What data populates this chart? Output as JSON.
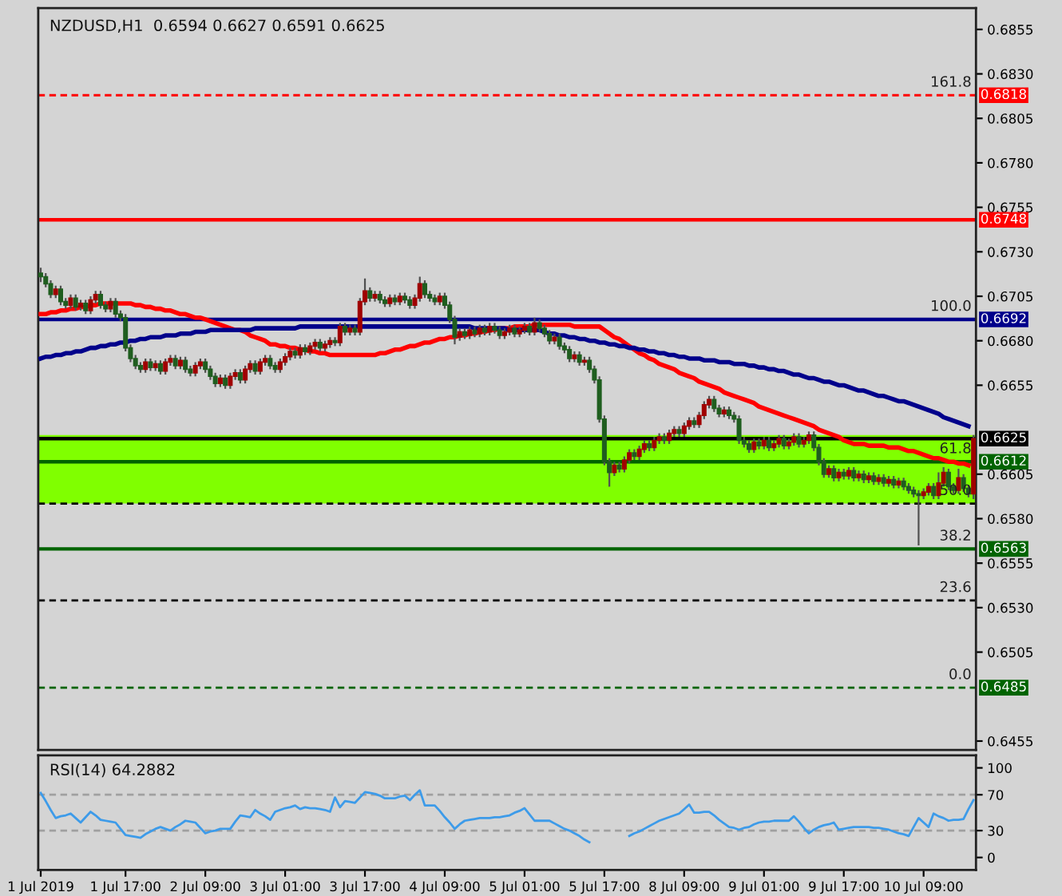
{
  "chart_data": [
    {
      "type": "candlestick",
      "title": "NZDUSD,H1  0.6594 0.6627 0.6591 0.6625",
      "tick_labels": "y",
      "categories": [
        null,
        null,
        null,
        null,
        null,
        null,
        null,
        null,
        null,
        null,
        null,
        null,
        null,
        null,
        null,
        null,
        null,
        null,
        null,
        null,
        null,
        null,
        null,
        null,
        null,
        null,
        null,
        null,
        null,
        null,
        null,
        null,
        null,
        null,
        null,
        null,
        null,
        null,
        null,
        null,
        null,
        null,
        null,
        null,
        null,
        null,
        null,
        null,
        null,
        null,
        null,
        null,
        null,
        null,
        null,
        null,
        null,
        null,
        null,
        null,
        null,
        null,
        null,
        null,
        null,
        null,
        null,
        null,
        null,
        null,
        null,
        null,
        null,
        null,
        null,
        null,
        null,
        null,
        null,
        null,
        null,
        null,
        null,
        null,
        null,
        null,
        null,
        null,
        null,
        null,
        null,
        null,
        null,
        null,
        null,
        null,
        null,
        null,
        null,
        null,
        null,
        null,
        null,
        null,
        null,
        null,
        null,
        null,
        null,
        null,
        null,
        null,
        null,
        null,
        null,
        null,
        null,
        null,
        null,
        null,
        null,
        null,
        null,
        null,
        null,
        null,
        null,
        null,
        null,
        null,
        null,
        null,
        null,
        null,
        null,
        null,
        null,
        null,
        null,
        null,
        null,
        null,
        null,
        null,
        null,
        null,
        null,
        null,
        null,
        null,
        null,
        null,
        null,
        null,
        null,
        null,
        null,
        null,
        null,
        null,
        null,
        null,
        null,
        null,
        null,
        null,
        null,
        null,
        null,
        null,
        null,
        null,
        null,
        null,
        null,
        null,
        null,
        null,
        null,
        null,
        null,
        null,
        null,
        null,
        null,
        null,
        null,
        null
      ],
      "ohlc": [
        [
          0.6718,
          0.6721,
          0.6713,
          0.6716
        ],
        [
          0.6716,
          0.6718,
          0.671,
          0.6712
        ],
        [
          0.6712,
          0.6714,
          0.6704,
          0.6706
        ],
        [
          0.6706,
          0.6711,
          0.6704,
          0.6709
        ],
        [
          0.6709,
          0.6711,
          0.67,
          0.6702
        ],
        [
          0.6702,
          0.6704,
          0.6698,
          0.67
        ],
        [
          0.67,
          0.6706,
          0.6698,
          0.6704
        ],
        [
          0.6704,
          0.6706,
          0.6697,
          0.6699
        ],
        [
          0.6699,
          0.6703,
          0.6697,
          0.6701
        ],
        [
          0.6701,
          0.6703,
          0.6695,
          0.6697
        ],
        [
          0.6697,
          0.6705,
          0.6695,
          0.6703
        ],
        [
          0.6703,
          0.6708,
          0.6701,
          0.6706
        ],
        [
          0.6706,
          0.6708,
          0.6698,
          0.67
        ],
        [
          0.67,
          0.6702,
          0.6696,
          0.6698
        ],
        [
          0.6698,
          0.6704,
          0.6696,
          0.6702
        ],
        [
          0.6702,
          0.6704,
          0.6693,
          0.6695
        ],
        [
          0.6695,
          0.6697,
          0.6691,
          0.6693
        ],
        [
          0.6693,
          0.6695,
          0.6674,
          0.6676
        ],
        [
          0.6676,
          0.6678,
          0.6668,
          0.667
        ],
        [
          0.667,
          0.6672,
          0.6664,
          0.6666
        ],
        [
          0.6666,
          0.6668,
          0.6662,
          0.6664
        ],
        [
          0.6664,
          0.667,
          0.6662,
          0.6668
        ],
        [
          0.6668,
          0.667,
          0.6663,
          0.6665
        ],
        [
          0.6665,
          0.6669,
          0.6663,
          0.6667
        ],
        [
          0.6667,
          0.6669,
          0.6661,
          0.6663
        ],
        [
          0.6663,
          0.667,
          0.6661,
          0.6668
        ],
        [
          0.6668,
          0.6672,
          0.6666,
          0.667
        ],
        [
          0.667,
          0.6672,
          0.6664,
          0.6666
        ],
        [
          0.6666,
          0.6671,
          0.6664,
          0.6669
        ],
        [
          0.6669,
          0.6671,
          0.6662,
          0.6664
        ],
        [
          0.6664,
          0.6666,
          0.666,
          0.6662
        ],
        [
          0.6662,
          0.6668,
          0.666,
          0.6666
        ],
        [
          0.6666,
          0.667,
          0.6664,
          0.6668
        ],
        [
          0.6668,
          0.667,
          0.6662,
          0.6664
        ],
        [
          0.6664,
          0.6666,
          0.6658,
          0.666
        ],
        [
          0.666,
          0.6662,
          0.6654,
          0.6656
        ],
        [
          0.6656,
          0.6661,
          0.6654,
          0.6659
        ],
        [
          0.6659,
          0.6661,
          0.6653,
          0.6655
        ],
        [
          0.6655,
          0.6662,
          0.6653,
          0.666
        ],
        [
          0.666,
          0.6664,
          0.6658,
          0.6662
        ],
        [
          0.6662,
          0.6664,
          0.6656,
          0.6658
        ],
        [
          0.6658,
          0.6666,
          0.6656,
          0.6664
        ],
        [
          0.6664,
          0.6669,
          0.6662,
          0.6667
        ],
        [
          0.6667,
          0.6669,
          0.6661,
          0.6663
        ],
        [
          0.6663,
          0.667,
          0.6661,
          0.6668
        ],
        [
          0.6668,
          0.6672,
          0.6666,
          0.667
        ],
        [
          0.667,
          0.6672,
          0.6664,
          0.6666
        ],
        [
          0.6666,
          0.6668,
          0.6662,
          0.6664
        ],
        [
          0.6664,
          0.667,
          0.6662,
          0.6668
        ],
        [
          0.6668,
          0.6673,
          0.6666,
          0.6671
        ],
        [
          0.6671,
          0.6676,
          0.6669,
          0.6674
        ],
        [
          0.6674,
          0.6676,
          0.667,
          0.6672
        ],
        [
          0.6672,
          0.6678,
          0.667,
          0.6676
        ],
        [
          0.6676,
          0.6678,
          0.6672,
          0.6674
        ],
        [
          0.6674,
          0.6679,
          0.6672,
          0.6677
        ],
        [
          0.6677,
          0.6681,
          0.6675,
          0.6679
        ],
        [
          0.6679,
          0.6681,
          0.6674,
          0.6676
        ],
        [
          0.6676,
          0.668,
          0.6674,
          0.6678
        ],
        [
          0.6678,
          0.6682,
          0.6676,
          0.668
        ],
        [
          0.668,
          0.6682,
          0.6677,
          0.6679
        ],
        [
          0.6679,
          0.669,
          0.6677,
          0.6688
        ],
        [
          0.6688,
          0.669,
          0.6683,
          0.6685
        ],
        [
          0.6685,
          0.6689,
          0.6683,
          0.6687
        ],
        [
          0.6687,
          0.6689,
          0.6683,
          0.6685
        ],
        [
          0.6685,
          0.6704,
          0.6683,
          0.6702
        ],
        [
          0.6702,
          0.6715,
          0.67,
          0.6708
        ],
        [
          0.6708,
          0.671,
          0.6702,
          0.6704
        ],
        [
          0.6704,
          0.6708,
          0.6702,
          0.6706
        ],
        [
          0.6706,
          0.6708,
          0.6701,
          0.6703
        ],
        [
          0.6703,
          0.6705,
          0.6699,
          0.6701
        ],
        [
          0.6701,
          0.6706,
          0.6699,
          0.6704
        ],
        [
          0.6704,
          0.6706,
          0.67,
          0.6702
        ],
        [
          0.6702,
          0.6707,
          0.67,
          0.6705
        ],
        [
          0.6705,
          0.6707,
          0.6701,
          0.6703
        ],
        [
          0.6703,
          0.6705,
          0.6698,
          0.67
        ],
        [
          0.67,
          0.6706,
          0.6698,
          0.6704
        ],
        [
          0.6704,
          0.6716,
          0.6702,
          0.6712
        ],
        [
          0.6712,
          0.6714,
          0.6704,
          0.6706
        ],
        [
          0.6706,
          0.6708,
          0.6702,
          0.6704
        ],
        [
          0.6704,
          0.6706,
          0.67,
          0.6702
        ],
        [
          0.6702,
          0.6707,
          0.67,
          0.6705
        ],
        [
          0.6705,
          0.6707,
          0.6698,
          0.67
        ],
        [
          0.67,
          0.6702,
          0.669,
          0.6692
        ],
        [
          0.6692,
          0.6694,
          0.6678,
          0.6682
        ],
        [
          0.6682,
          0.6687,
          0.668,
          0.6685
        ],
        [
          0.6685,
          0.6687,
          0.6681,
          0.6683
        ],
        [
          0.6683,
          0.6688,
          0.6681,
          0.6686
        ],
        [
          0.6686,
          0.6688,
          0.6682,
          0.6684
        ],
        [
          0.6684,
          0.6689,
          0.6682,
          0.6687
        ],
        [
          0.6687,
          0.6689,
          0.6683,
          0.6685
        ],
        [
          0.6685,
          0.669,
          0.6683,
          0.6688
        ],
        [
          0.6688,
          0.669,
          0.6684,
          0.6686
        ],
        [
          0.6686,
          0.6688,
          0.6681,
          0.6683
        ],
        [
          0.6683,
          0.6687,
          0.6681,
          0.6685
        ],
        [
          0.6685,
          0.6689,
          0.6683,
          0.6687
        ],
        [
          0.6687,
          0.6689,
          0.6682,
          0.6684
        ],
        [
          0.6684,
          0.6688,
          0.6682,
          0.6686
        ],
        [
          0.6686,
          0.669,
          0.6684,
          0.6688
        ],
        [
          0.6688,
          0.669,
          0.6683,
          0.6685
        ],
        [
          0.6685,
          0.6693,
          0.6683,
          0.669
        ],
        [
          0.669,
          0.6692,
          0.6685,
          0.6687
        ],
        [
          0.6687,
          0.6689,
          0.6682,
          0.6684
        ],
        [
          0.6684,
          0.6686,
          0.6678,
          0.668
        ],
        [
          0.668,
          0.6684,
          0.6678,
          0.6682
        ],
        [
          0.6682,
          0.6684,
          0.6675,
          0.6677
        ],
        [
          0.6677,
          0.6679,
          0.6673,
          0.6675
        ],
        [
          0.6675,
          0.6677,
          0.6668,
          0.667
        ],
        [
          0.667,
          0.6674,
          0.6668,
          0.6672
        ],
        [
          0.6672,
          0.6674,
          0.6666,
          0.6668
        ],
        [
          0.6668,
          0.6671,
          0.6666,
          0.6669
        ],
        [
          0.6669,
          0.6671,
          0.6662,
          0.6664
        ],
        [
          0.6664,
          0.6666,
          0.6656,
          0.6658
        ],
        [
          0.6658,
          0.666,
          0.6634,
          0.6636
        ],
        [
          0.6636,
          0.6638,
          0.661,
          0.6612
        ],
        [
          0.6612,
          0.6614,
          0.6598,
          0.6606
        ],
        [
          0.6606,
          0.6612,
          0.6604,
          0.661
        ],
        [
          0.661,
          0.6612,
          0.6606,
          0.6608
        ],
        [
          0.6608,
          0.6615,
          0.6606,
          0.6613
        ],
        [
          0.6613,
          0.6619,
          0.6611,
          0.6617
        ],
        [
          0.6617,
          0.6619,
          0.6613,
          0.6615
        ],
        [
          0.6615,
          0.6621,
          0.6613,
          0.6619
        ],
        [
          0.6619,
          0.6624,
          0.6617,
          0.6622
        ],
        [
          0.6622,
          0.6624,
          0.6618,
          0.662
        ],
        [
          0.662,
          0.6626,
          0.6618,
          0.6624
        ],
        [
          0.6624,
          0.6628,
          0.6622,
          0.6626
        ],
        [
          0.6626,
          0.6628,
          0.6622,
          0.6624
        ],
        [
          0.6624,
          0.663,
          0.6622,
          0.6628
        ],
        [
          0.6628,
          0.6632,
          0.6626,
          0.663
        ],
        [
          0.663,
          0.6632,
          0.6626,
          0.6628
        ],
        [
          0.6628,
          0.6634,
          0.6626,
          0.6632
        ],
        [
          0.6632,
          0.6637,
          0.663,
          0.6635
        ],
        [
          0.6635,
          0.6637,
          0.6631,
          0.6633
        ],
        [
          0.6633,
          0.664,
          0.6631,
          0.6638
        ],
        [
          0.6638,
          0.6646,
          0.6636,
          0.6644
        ],
        [
          0.6644,
          0.6649,
          0.6642,
          0.6647
        ],
        [
          0.6647,
          0.6649,
          0.664,
          0.6642
        ],
        [
          0.6642,
          0.6644,
          0.6637,
          0.6639
        ],
        [
          0.6639,
          0.6643,
          0.6637,
          0.6641
        ],
        [
          0.6641,
          0.6643,
          0.6636,
          0.6638
        ],
        [
          0.6638,
          0.664,
          0.6634,
          0.6636
        ],
        [
          0.6636,
          0.6638,
          0.6622,
          0.6624
        ],
        [
          0.6624,
          0.6626,
          0.662,
          0.6622
        ],
        [
          0.6622,
          0.6624,
          0.6617,
          0.6619
        ],
        [
          0.6619,
          0.6625,
          0.6617,
          0.6623
        ],
        [
          0.6623,
          0.6625,
          0.6619,
          0.6621
        ],
        [
          0.6621,
          0.6626,
          0.6619,
          0.6624
        ],
        [
          0.6624,
          0.6626,
          0.6618,
          0.662
        ],
        [
          0.662,
          0.6624,
          0.6618,
          0.6622
        ],
        [
          0.6622,
          0.6627,
          0.662,
          0.6625
        ],
        [
          0.6625,
          0.6627,
          0.6619,
          0.6621
        ],
        [
          0.6621,
          0.6625,
          0.6619,
          0.6623
        ],
        [
          0.6623,
          0.6628,
          0.6621,
          0.6626
        ],
        [
          0.6626,
          0.6628,
          0.662,
          0.6622
        ],
        [
          0.6622,
          0.6626,
          0.662,
          0.6624
        ],
        [
          0.6624,
          0.6629,
          0.6622,
          0.6627
        ],
        [
          0.6627,
          0.6629,
          0.6618,
          0.662
        ],
        [
          0.662,
          0.6622,
          0.661,
          0.6612
        ],
        [
          0.6612,
          0.6614,
          0.6603,
          0.6605
        ],
        [
          0.6605,
          0.661,
          0.6603,
          0.6608
        ],
        [
          0.6608,
          0.661,
          0.6601,
          0.6603
        ],
        [
          0.6603,
          0.6608,
          0.6601,
          0.6606
        ],
        [
          0.6606,
          0.6608,
          0.6602,
          0.6604
        ],
        [
          0.6604,
          0.6609,
          0.6602,
          0.6607
        ],
        [
          0.6607,
          0.6609,
          0.6601,
          0.6603
        ],
        [
          0.6603,
          0.6607,
          0.6601,
          0.6605
        ],
        [
          0.6605,
          0.6607,
          0.66,
          0.6602
        ],
        [
          0.6602,
          0.6606,
          0.66,
          0.6604
        ],
        [
          0.6604,
          0.6606,
          0.6599,
          0.6601
        ],
        [
          0.6601,
          0.6605,
          0.6599,
          0.6603
        ],
        [
          0.6603,
          0.6605,
          0.6598,
          0.66
        ],
        [
          0.66,
          0.6604,
          0.6598,
          0.6602
        ],
        [
          0.6602,
          0.6604,
          0.6597,
          0.6599
        ],
        [
          0.6599,
          0.6603,
          0.6597,
          0.6601
        ],
        [
          0.6601,
          0.6603,
          0.6596,
          0.6598
        ],
        [
          0.6598,
          0.66,
          0.6594,
          0.6596
        ],
        [
          0.6596,
          0.6598,
          0.6592,
          0.6594
        ],
        [
          0.6594,
          0.6596,
          0.6565,
          0.6593
        ],
        [
          0.6593,
          0.6597,
          0.6591,
          0.6595
        ],
        [
          0.6595,
          0.66,
          0.6593,
          0.6598
        ],
        [
          0.6598,
          0.66,
          0.6591,
          0.6593
        ],
        [
          0.6593,
          0.6606,
          0.6591,
          0.66
        ],
        [
          0.66,
          0.6609,
          0.6598,
          0.6606
        ],
        [
          0.6606,
          0.6608,
          0.6596,
          0.6598
        ],
        [
          0.6598,
          0.66,
          0.6594,
          0.6596
        ],
        [
          0.6596,
          0.6608,
          0.6594,
          0.6603
        ],
        [
          0.6603,
          0.6605,
          0.6595,
          0.6597
        ],
        [
          0.6597,
          0.6599,
          0.6592,
          0.6594
        ],
        [
          0.6594,
          0.6627,
          0.6591,
          0.6625
        ]
      ],
      "series": [
        {
          "type": "line",
          "color": "#ff0000",
          "values": [
            0.6695,
            0.6695,
            0.6696,
            0.6696,
            0.6697,
            0.6697,
            0.6698,
            0.6698,
            0.6699,
            0.6699,
            0.67,
            0.67,
            0.6701,
            0.6701,
            0.6701,
            0.6701,
            0.6701,
            0.6701,
            0.6701,
            0.67,
            0.67,
            0.6699,
            0.6699,
            0.6698,
            0.6698,
            0.6697,
            0.6697,
            0.6696,
            0.6695,
            0.6695,
            0.6694,
            0.6693,
            0.6693,
            0.6692,
            0.6691,
            0.669,
            0.6689,
            0.6688,
            0.6687,
            0.6686,
            0.6686,
            0.6685,
            0.6683,
            0.6682,
            0.6681,
            0.668,
            0.6678,
            0.6678,
            0.6677,
            0.6677,
            0.6676,
            0.6676,
            0.6675,
            0.6675,
            0.6674,
            0.6674,
            0.6673,
            0.6673,
            0.6672,
            0.6672,
            0.6672,
            0.6672,
            0.6672,
            0.6672,
            0.6672,
            0.6672,
            0.6672,
            0.6672,
            0.6673,
            0.6673,
            0.6674,
            0.6675,
            0.6675,
            0.6676,
            0.6677,
            0.6677,
            0.6678,
            0.6679,
            0.6679,
            0.668,
            0.6681,
            0.6681,
            0.6682,
            0.6682,
            0.6683,
            0.6683,
            0.6684,
            0.6684,
            0.6685,
            0.6685,
            0.6686,
            0.6686,
            0.6687,
            0.6687,
            0.6687,
            0.6688,
            0.6688,
            0.6688,
            0.6688,
            0.6689,
            0.6689,
            0.6689,
            0.6689,
            0.6689,
            0.6689,
            0.6689,
            0.6689,
            0.6688,
            0.6688,
            0.6688,
            0.6688,
            0.6688,
            0.6688,
            0.6686,
            0.6684,
            0.6682,
            0.6681,
            0.6679,
            0.6677,
            0.6675,
            0.6673,
            0.6672,
            0.667,
            0.6669,
            0.6667,
            0.6666,
            0.6665,
            0.6664,
            0.6662,
            0.6661,
            0.666,
            0.6659,
            0.6657,
            0.6656,
            0.6655,
            0.6654,
            0.6653,
            0.6651,
            0.665,
            0.6649,
            0.6648,
            0.6647,
            0.6646,
            0.6645,
            0.6643,
            0.6642,
            0.6641,
            0.664,
            0.6639,
            0.6638,
            0.6637,
            0.6636,
            0.6635,
            0.6634,
            0.6633,
            0.6632,
            0.663,
            0.6629,
            0.6628,
            0.6627,
            0.6626,
            0.6624,
            0.6623,
            0.6622,
            0.6622,
            0.6622,
            0.6621,
            0.6621,
            0.6621,
            0.6621,
            0.662,
            0.662,
            0.662,
            0.6619,
            0.6618,
            0.6618,
            0.6617,
            0.6616,
            0.6615,
            0.6614,
            0.6614,
            0.6613,
            0.6612,
            0.6612,
            0.6611,
            0.6611,
            0.661,
            null
          ]
        },
        {
          "type": "line",
          "color": "#00008b",
          "values": [
            0.667,
            0.6671,
            0.6671,
            0.6672,
            0.6672,
            0.6673,
            0.6673,
            0.6674,
            0.6674,
            0.6675,
            0.6676,
            0.6676,
            0.6677,
            0.6677,
            0.6678,
            0.6678,
            0.6679,
            0.6679,
            0.668,
            0.668,
            0.6681,
            0.6681,
            0.6682,
            0.6682,
            0.6682,
            0.6683,
            0.6683,
            0.6683,
            0.6684,
            0.6684,
            0.6684,
            0.6685,
            0.6685,
            0.6685,
            0.6686,
            0.6686,
            0.6686,
            0.6686,
            0.6686,
            0.6686,
            0.6686,
            0.6686,
            0.6686,
            0.6687,
            0.6687,
            0.6687,
            0.6687,
            0.6687,
            0.6687,
            0.6687,
            0.6687,
            0.6687,
            0.6688,
            0.6688,
            0.6688,
            0.6688,
            0.6688,
            0.6688,
            0.6688,
            0.6688,
            0.6688,
            0.6688,
            0.6688,
            0.6688,
            0.6688,
            0.6688,
            0.6688,
            0.6688,
            0.6688,
            0.6688,
            0.6688,
            0.6688,
            0.6688,
            0.6688,
            0.6688,
            0.6688,
            0.6688,
            0.6688,
            0.6688,
            0.6688,
            0.6688,
            0.6688,
            0.6688,
            0.6688,
            0.6688,
            0.6688,
            0.6688,
            0.6687,
            0.6687,
            0.6687,
            0.6687,
            0.6687,
            0.6687,
            0.6687,
            0.6686,
            0.6686,
            0.6686,
            0.6686,
            0.6686,
            0.6686,
            0.6686,
            0.6685,
            0.6684,
            0.6684,
            0.6683,
            0.6683,
            0.6682,
            0.6682,
            0.6681,
            0.6681,
            0.668,
            0.668,
            0.6679,
            0.6679,
            0.6678,
            0.6678,
            0.6677,
            0.6677,
            0.6676,
            0.6676,
            0.6675,
            0.6675,
            0.6674,
            0.6674,
            0.6673,
            0.6673,
            0.6672,
            0.6672,
            0.6671,
            0.6671,
            0.667,
            0.667,
            0.667,
            0.6669,
            0.6669,
            0.6669,
            0.6668,
            0.6668,
            0.6668,
            0.6667,
            0.6667,
            0.6667,
            0.6666,
            0.6666,
            0.6665,
            0.6665,
            0.6664,
            0.6664,
            0.6663,
            0.6663,
            0.6662,
            0.6661,
            0.6661,
            0.666,
            0.6659,
            0.6659,
            0.6658,
            0.6657,
            0.6657,
            0.6656,
            0.6655,
            0.6655,
            0.6654,
            0.6653,
            0.6652,
            0.6652,
            0.6651,
            0.665,
            0.6649,
            0.6649,
            0.6648,
            0.6647,
            0.6646,
            0.6646,
            0.6645,
            0.6644,
            0.6643,
            0.6642,
            0.6641,
            0.664,
            0.6639,
            0.6637,
            0.6636,
            0.6635,
            0.6634,
            0.6633,
            0.6632,
            null
          ]
        }
      ],
      "ylim": [
        0.645,
        0.6867
      ],
      "yticks": [
        {
          "value": 0.6855,
          "label": "0.6855"
        },
        {
          "value": 0.683,
          "label": "0.6830"
        },
        {
          "value": 0.6805,
          "label": "0.6805"
        },
        {
          "value": 0.678,
          "label": "0.6780"
        },
        {
          "value": 0.6755,
          "label": "0.6755"
        },
        {
          "value": 0.673,
          "label": "0.6730"
        },
        {
          "value": 0.6705,
          "label": "0.6705"
        },
        {
          "value": 0.668,
          "label": "0.6680"
        },
        {
          "value": 0.6655,
          "label": "0.6655"
        },
        {
          "value": 0.6605,
          "label": "0.6605"
        },
        {
          "value": 0.658,
          "label": "0.6580"
        },
        {
          "value": 0.6555,
          "label": "0.6555"
        },
        {
          "value": 0.653,
          "label": "0.6530"
        },
        {
          "value": 0.6505,
          "label": "0.6505"
        },
        {
          "value": 0.6455,
          "label": "0.6455"
        }
      ],
      "bands": [
        {
          "axis": "y",
          "from": 0.65885,
          "to": 0.6627,
          "color": "#80ff00"
        }
      ],
      "ref_lines": [
        {
          "axis": "y",
          "value": 0.65885,
          "line_style": "dashed"
        },
        {
          "axis": "y",
          "value": 0.6534,
          "line_style": "dashed"
        },
        {
          "axis": "y",
          "value": 0.6818,
          "label": "0.6818",
          "color": "#ff0000",
          "line_style": "dashed"
        },
        {
          "axis": "y",
          "value": 0.6748,
          "label": "0.6748",
          "color": "#ff0000",
          "line_style": "solid"
        },
        {
          "axis": "y",
          "value": 0.6692,
          "label": "0.6692",
          "color": "#00008b",
          "line_style": "solid"
        },
        {
          "axis": "y",
          "value": 0.6625,
          "label": "0.6625",
          "color": "#000000",
          "line_style": "solid"
        },
        {
          "axis": "y",
          "value": 0.6612,
          "label": "0.6612",
          "color": "#006400",
          "line_style": "solid"
        },
        {
          "axis": "y",
          "value": 0.6563,
          "label": "0.6563",
          "color": "#006400",
          "line_style": "solid"
        },
        {
          "axis": "y",
          "value": 0.6485,
          "label": "0.6485",
          "color": "#006400",
          "line_style": "dashed"
        }
      ],
      "annotations": [
        {
          "text": "161.8",
          "y": 0.6818
        },
        {
          "text": "100.0",
          "y": 0.6692
        },
        {
          "text": "61.8",
          "y": 0.6612
        },
        {
          "text": "50.0",
          "y": 0.65885
        },
        {
          "text": "38.2",
          "y": 0.6563
        },
        {
          "text": "23.6",
          "y": 0.6534
        },
        {
          "text": "0.0",
          "y": 0.6485
        }
      ]
    },
    {
      "type": "line",
      "title": "RSI(14) 64.2882",
      "categories": [
        "1 Jul 2019",
        null,
        null,
        null,
        null,
        null,
        null,
        null,
        null,
        null,
        null,
        null,
        null,
        null,
        null,
        null,
        null,
        "1 Jul 17:00",
        null,
        null,
        null,
        null,
        null,
        null,
        null,
        null,
        null,
        null,
        null,
        null,
        null,
        null,
        null,
        "2 Jul 09:00",
        null,
        null,
        null,
        null,
        null,
        null,
        null,
        null,
        null,
        null,
        null,
        null,
        null,
        null,
        null,
        "3 Jul 01:00",
        null,
        null,
        null,
        null,
        null,
        null,
        null,
        null,
        null,
        null,
        null,
        null,
        null,
        null,
        null,
        "3 Jul 17:00",
        null,
        null,
        null,
        null,
        null,
        null,
        null,
        null,
        null,
        null,
        null,
        null,
        null,
        null,
        null,
        "4 Jul 09:00",
        null,
        null,
        null,
        null,
        null,
        null,
        null,
        null,
        null,
        null,
        null,
        null,
        null,
        null,
        null,
        "5 Jul 01:00",
        null,
        null,
        null,
        null,
        null,
        null,
        null,
        null,
        null,
        null,
        null,
        null,
        null,
        null,
        null,
        "5 Jul 17:00",
        null,
        null,
        null,
        null,
        null,
        null,
        null,
        null,
        null,
        null,
        null,
        null,
        null,
        null,
        null,
        "8 Jul 09:00",
        null,
        null,
        null,
        null,
        null,
        null,
        null,
        null,
        null,
        null,
        null,
        null,
        null,
        null,
        null,
        "9 Jul 01:00",
        null,
        null,
        null,
        null,
        null,
        null,
        null,
        null,
        null,
        null,
        null,
        null,
        null,
        null,
        null,
        "9 Jul 17:00",
        null,
        null,
        null,
        null,
        null,
        null,
        null,
        null,
        null,
        null,
        null,
        null,
        null,
        null,
        null,
        "10 Jul 09:00",
        null,
        null,
        null,
        null,
        null,
        null,
        null,
        null,
        null,
        null
      ],
      "series": [
        {
          "color": "#3d9be9",
          "values": [
            72,
            63,
            53,
            44,
            46,
            47,
            49,
            44,
            39,
            45,
            51,
            47,
            42,
            41,
            40,
            39,
            32,
            25,
            24,
            23,
            22,
            26,
            29,
            32,
            34,
            32,
            30,
            34,
            37,
            41,
            40,
            39,
            33,
            27,
            29,
            30,
            32,
            32,
            32,
            40,
            47,
            46,
            45,
            53,
            49,
            46,
            42,
            51,
            53,
            55,
            56,
            58,
            54,
            56,
            55,
            55,
            54,
            53,
            51,
            67,
            56,
            63,
            62,
            61,
            67,
            73,
            72,
            71,
            69,
            66,
            66,
            66,
            68,
            69,
            64,
            70,
            75,
            58,
            58,
            58,
            52,
            45,
            39,
            32,
            37,
            41,
            42,
            43,
            44,
            44,
            44,
            45,
            45,
            46,
            47,
            50,
            52,
            55,
            48,
            41,
            41,
            41,
            41,
            38,
            35,
            32,
            30,
            27,
            24,
            20,
            17,
            null,
            null,
            null,
            null,
            null,
            null,
            null,
            24,
            27,
            29,
            32,
            35,
            38,
            41,
            43,
            45,
            47,
            49,
            54,
            59,
            50,
            50,
            51,
            51,
            47,
            42,
            38,
            34,
            33,
            31,
            33,
            34,
            37,
            39,
            40,
            40,
            41,
            41,
            41,
            41,
            46,
            40,
            33,
            27,
            31,
            34,
            36,
            37,
            39,
            31,
            32,
            33,
            34,
            34,
            34,
            34,
            33,
            33,
            32,
            31,
            29,
            27,
            26,
            24,
            34,
            44,
            39,
            34,
            49,
            46,
            44,
            41,
            42,
            42,
            43,
            54,
            64
          ]
        }
      ],
      "ylim": [
        -14,
        114
      ],
      "yticks": [
        0,
        30,
        70,
        100
      ],
      "ref_lines": [
        {
          "axis": "y",
          "value": 70,
          "color": "#a0a0a0",
          "line_style": "dashed"
        },
        {
          "axis": "y",
          "value": 30,
          "color": "#a0a0a0",
          "line_style": "dashed"
        }
      ]
    }
  ]
}
